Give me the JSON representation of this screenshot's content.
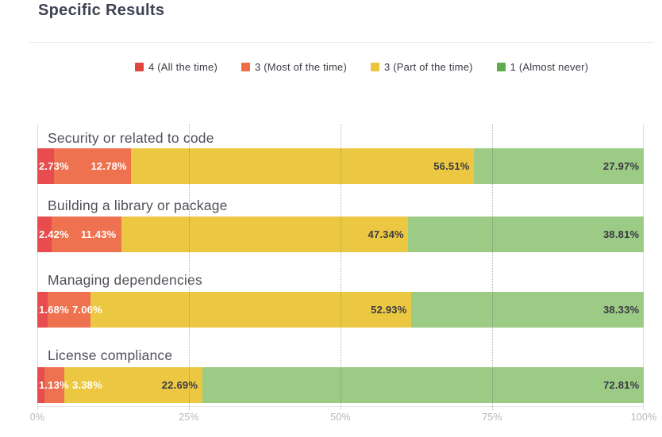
{
  "chart_data": {
    "type": "bar",
    "orientation": "horizontal",
    "stacked": true,
    "title": "Specific Results",
    "categories": [
      "Security or related to code",
      "Building a library or package",
      "Managing dependencies",
      "License compliance"
    ],
    "series": [
      {
        "name": "4 (All the time)",
        "legend_color": "#e04540",
        "bar_color": "#e84c4e",
        "value_label_color": "#ffffff",
        "values": [
          2.73,
          2.42,
          1.68,
          1.13
        ]
      },
      {
        "name": "3 (Most of the time)",
        "legend_color": "#ef6c44",
        "bar_color": "#ee724f",
        "value_label_color": "#ffffff",
        "values": [
          12.78,
          11.43,
          7.06,
          3.38
        ]
      },
      {
        "name": "3 (Part of the time)",
        "legend_color": "#ebc43c",
        "bar_color": "#ecc842",
        "value_label_color": "#3a3a42",
        "values": [
          56.51,
          47.34,
          52.93,
          22.69
        ]
      },
      {
        "name": "1 (Almost never)",
        "legend_color": "#5ead4d",
        "bar_color": "#9bcb85",
        "value_label_color": "#3a3a42",
        "values": [
          27.97,
          38.81,
          38.33,
          72.81
        ]
      }
    ],
    "value_label_format": "percent-2dp",
    "x_ticks": [
      "0%",
      "25%",
      "50%",
      "75%",
      "100%"
    ],
    "xlim": [
      0,
      100
    ],
    "xlabel": "",
    "ylabel": "",
    "legend_position": "top",
    "grid": "vertical dotted lines at 25%, 50%, 75%; solid edge lines at 0% and 100%"
  }
}
